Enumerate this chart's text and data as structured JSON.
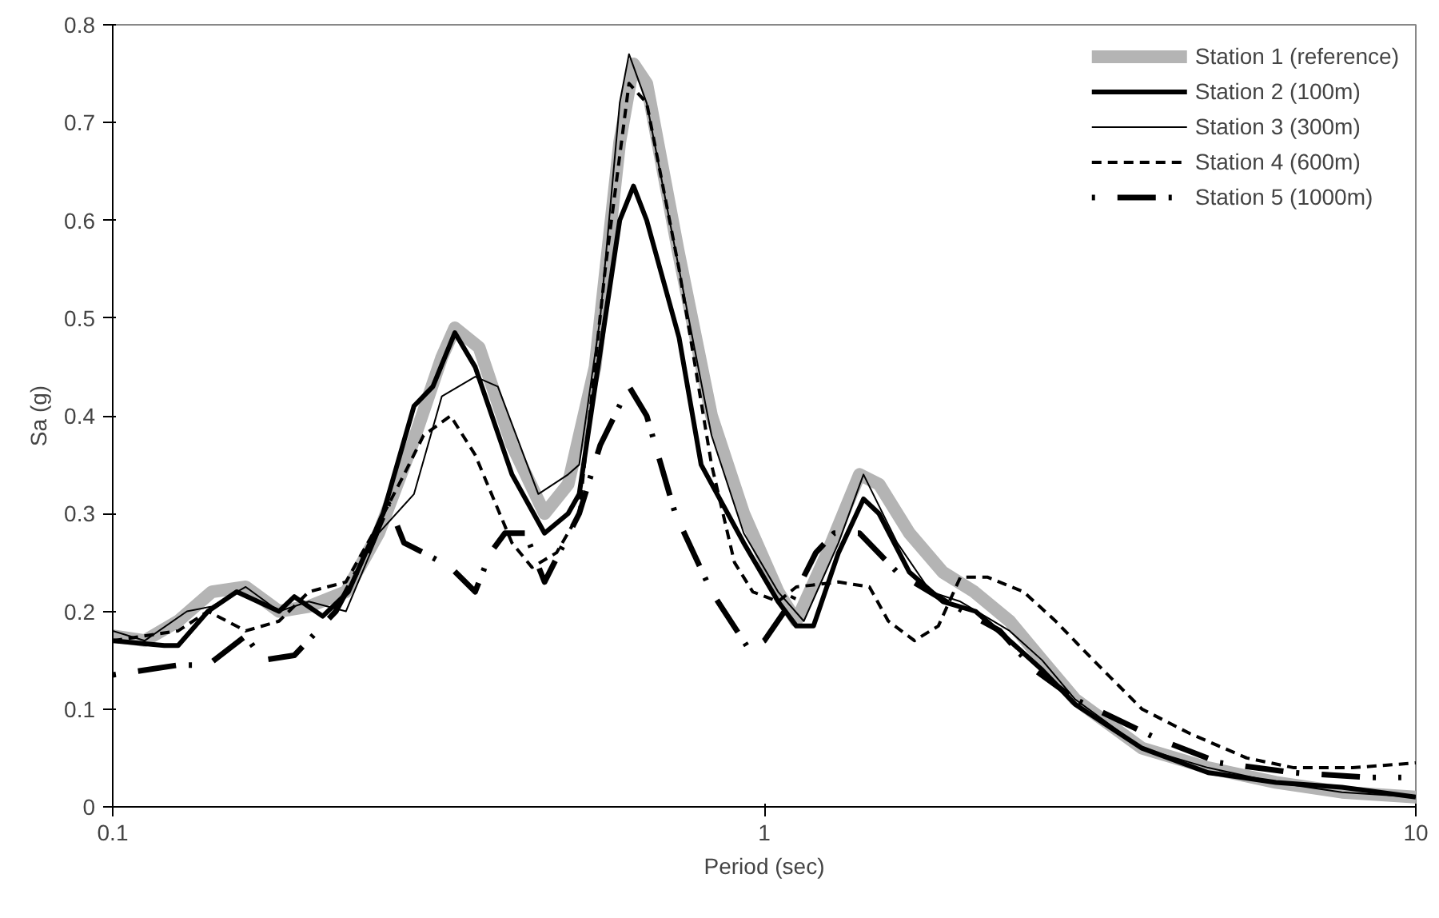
{
  "chart_data": {
    "type": "line",
    "xlabel": "Period (sec)",
    "ylabel": "Sa (g)",
    "log": "x",
    "xlim": [
      0.1,
      10
    ],
    "xticks": [
      0.1,
      1,
      10
    ],
    "ylim": [
      0,
      0.8
    ],
    "yticks": [
      0,
      0.1,
      0.2,
      0.3,
      0.4,
      0.5,
      0.6,
      0.7,
      0.8
    ],
    "grid": false,
    "legend": "top right",
    "series": [
      {
        "name": "Station 1 (reference)",
        "color": "#b4b4b4",
        "line_style": "solid",
        "x": [
          0.1,
          0.112,
          0.126,
          0.142,
          0.16,
          0.18,
          0.2,
          0.228,
          0.256,
          0.288,
          0.32,
          0.335,
          0.365,
          0.41,
          0.46,
          0.5,
          0.55,
          0.6,
          0.63,
          0.66,
          0.737,
          0.83,
          0.93,
          1.05,
          1.12,
          1.25,
          1.4,
          1.5,
          1.67,
          1.88,
          2.1,
          2.38,
          2.67,
          3.0,
          3.8,
          4.8,
          6.1,
          7.7,
          10
        ],
        "values": [
          0.175,
          0.17,
          0.19,
          0.22,
          0.225,
          0.2,
          0.205,
          0.22,
          0.28,
          0.37,
          0.46,
          0.49,
          0.47,
          0.37,
          0.3,
          0.33,
          0.45,
          0.68,
          0.76,
          0.74,
          0.57,
          0.4,
          0.3,
          0.22,
          0.19,
          0.26,
          0.34,
          0.33,
          0.28,
          0.24,
          0.22,
          0.19,
          0.15,
          0.11,
          0.06,
          0.04,
          0.025,
          0.015,
          0.01
        ]
      },
      {
        "name": "Station 2 (100m)",
        "color": "#000000",
        "line_style": "solid",
        "x": [
          0.1,
          0.12,
          0.126,
          0.14,
          0.155,
          0.18,
          0.19,
          0.21,
          0.23,
          0.26,
          0.29,
          0.31,
          0.335,
          0.36,
          0.41,
          0.46,
          0.5,
          0.52,
          0.55,
          0.6,
          0.63,
          0.66,
          0.74,
          0.8,
          0.93,
          1.05,
          1.12,
          1.19,
          1.3,
          1.42,
          1.5,
          1.67,
          1.88,
          2.11,
          2.38,
          2.67,
          3.0,
          3.8,
          4.8,
          6.1,
          7.7,
          10
        ],
        "values": [
          0.17,
          0.165,
          0.165,
          0.2,
          0.22,
          0.2,
          0.215,
          0.195,
          0.22,
          0.3,
          0.41,
          0.43,
          0.485,
          0.45,
          0.34,
          0.28,
          0.3,
          0.32,
          0.43,
          0.6,
          0.635,
          0.6,
          0.48,
          0.35,
          0.27,
          0.21,
          0.185,
          0.185,
          0.26,
          0.315,
          0.3,
          0.24,
          0.21,
          0.2,
          0.17,
          0.14,
          0.105,
          0.06,
          0.035,
          0.025,
          0.02,
          0.01
        ]
      },
      {
        "name": "Station 3 (300m)",
        "color": "#000000",
        "line_style": "solid",
        "x": [
          0.1,
          0.112,
          0.13,
          0.142,
          0.16,
          0.18,
          0.2,
          0.228,
          0.256,
          0.29,
          0.32,
          0.36,
          0.39,
          0.45,
          0.5,
          0.52,
          0.56,
          0.6,
          0.62,
          0.66,
          0.74,
          0.83,
          0.93,
          1.05,
          1.15,
          1.3,
          1.42,
          1.6,
          1.8,
          2.0,
          2.38,
          2.67,
          3.0,
          3.8,
          4.8,
          6.1,
          7.7,
          10
        ],
        "values": [
          0.18,
          0.17,
          0.2,
          0.205,
          0.225,
          0.2,
          0.21,
          0.2,
          0.28,
          0.32,
          0.42,
          0.44,
          0.43,
          0.32,
          0.34,
          0.35,
          0.5,
          0.72,
          0.77,
          0.72,
          0.55,
          0.38,
          0.28,
          0.22,
          0.19,
          0.27,
          0.34,
          0.27,
          0.22,
          0.21,
          0.18,
          0.15,
          0.11,
          0.06,
          0.04,
          0.025,
          0.015,
          0.01
        ]
      },
      {
        "name": "Station 4 (600m)",
        "color": "#000000",
        "line_style": "dashed",
        "x": [
          0.1,
          0.126,
          0.14,
          0.16,
          0.18,
          0.2,
          0.228,
          0.256,
          0.28,
          0.3,
          0.33,
          0.36,
          0.41,
          0.44,
          0.48,
          0.52,
          0.57,
          0.62,
          0.66,
          0.74,
          0.83,
          0.9,
          0.96,
          1.05,
          1.12,
          1.3,
          1.45,
          1.55,
          1.7,
          1.85,
          2.0,
          2.2,
          2.5,
          2.8,
          3.2,
          3.8,
          4.5,
          5.5,
          6.5,
          8,
          10
        ],
        "values": [
          0.17,
          0.18,
          0.2,
          0.18,
          0.19,
          0.22,
          0.23,
          0.29,
          0.34,
          0.38,
          0.4,
          0.36,
          0.27,
          0.245,
          0.26,
          0.3,
          0.55,
          0.74,
          0.72,
          0.55,
          0.35,
          0.25,
          0.22,
          0.21,
          0.225,
          0.23,
          0.225,
          0.19,
          0.17,
          0.185,
          0.235,
          0.235,
          0.22,
          0.19,
          0.15,
          0.1,
          0.075,
          0.05,
          0.04,
          0.04,
          0.045
        ]
      },
      {
        "name": "Station 5 (1000m)",
        "color": "#000000",
        "line_style": "dashed",
        "x": [
          0.1,
          0.126,
          0.14,
          0.16,
          0.17,
          0.19,
          0.22,
          0.25,
          0.265,
          0.28,
          0.3,
          0.33,
          0.36,
          0.38,
          0.4,
          0.43,
          0.46,
          0.52,
          0.56,
          0.62,
          0.66,
          0.73,
          0.83,
          0.95,
          1.0,
          1.1,
          1.2,
          1.28,
          1.4,
          1.6,
          1.9,
          2.3,
          2.6,
          3.0,
          4.0,
          5.0,
          6.5,
          8.5,
          9.5
        ],
        "values": [
          0.135,
          0.145,
          0.145,
          0.175,
          0.15,
          0.155,
          0.2,
          0.27,
          0.31,
          0.27,
          0.26,
          0.245,
          0.22,
          0.26,
          0.28,
          0.28,
          0.23,
          0.3,
          0.37,
          0.43,
          0.4,
          0.3,
          0.22,
          0.16,
          0.17,
          0.21,
          0.26,
          0.28,
          0.28,
          0.24,
          0.21,
          0.18,
          0.14,
          0.11,
          0.07,
          0.045,
          0.035,
          0.03,
          0.03
        ]
      }
    ]
  }
}
